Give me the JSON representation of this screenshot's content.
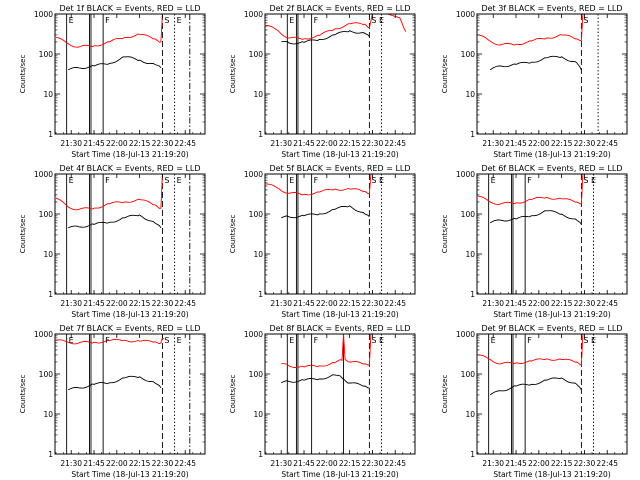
{
  "figure": {
    "ylabel": "Counts/sec",
    "xlabel": "Start Time (18-Jul-13 21:19:20)",
    "x_ticks": [
      "21:30",
      "21:45",
      "22:00",
      "22:15",
      "22:30",
      "22:45"
    ],
    "y_ticks": [
      "1",
      "10",
      "100",
      "1000"
    ],
    "colors": {
      "events": "#000000",
      "lld": "#ff0000",
      "axis": "#000000"
    }
  },
  "chart_data": [
    {
      "type": "line",
      "title": "Det 1f BLACK = Events, RED = LLD",
      "xlabel": "Start Time (18-Jul-13 21:19:20)",
      "ylabel": "Counts/sec",
      "ylim": [
        1,
        1000
      ],
      "yscale": "log",
      "xlim": [
        "21:19:20",
        "22:58"
      ],
      "x_ticks": [
        "21:30",
        "21:45",
        "22:00",
        "22:15",
        "22:30",
        "22:45"
      ],
      "markers": {
        "solid": [
          "21:27",
          "21:42",
          "21:43",
          "21:51"
        ],
        "dashed": [
          "22:30"
        ],
        "dotted": [
          "22:38"
        ],
        "dashdot": [
          "22:48"
        ],
        "labels": [
          {
            "x": "21:27",
            "text": "E"
          },
          {
            "x": "21:51",
            "text": "F"
          },
          {
            "x": "22:30",
            "text": "S"
          },
          {
            "x": "22:38",
            "text": "E"
          }
        ]
      },
      "series": [
        {
          "name": "Events",
          "x": [
            "21:28",
            "21:35",
            "21:45",
            "21:55",
            "22:05",
            "22:15",
            "22:25",
            "22:29"
          ],
          "values": [
            40,
            45,
            50,
            58,
            85,
            70,
            55,
            45
          ]
        },
        {
          "name": "LLD",
          "x": [
            "21:20",
            "21:28",
            "21:35",
            "21:45",
            "21:55",
            "22:05",
            "22:15",
            "22:25",
            "22:29",
            "22:30",
            "22:31"
          ],
          "values": [
            260,
            180,
            150,
            160,
            200,
            260,
            310,
            240,
            200,
            1000,
            1000
          ]
        }
      ]
    },
    {
      "type": "line",
      "title": "Det 2f BLACK = Events, RED = LLD",
      "xlabel": "Start Time (18-Jul-13 21:19:20)",
      "ylabel": "Counts/sec",
      "ylim": [
        1,
        1000
      ],
      "yscale": "log",
      "xlim": [
        "21:19:20",
        "22:58"
      ],
      "x_ticks": [
        "21:30",
        "21:45",
        "22:00",
        "22:15",
        "22:30",
        "22:45"
      ],
      "markers": {
        "solid": [
          "21:34",
          "21:40",
          "21:41",
          "21:50"
        ],
        "dashed": [
          "22:28"
        ],
        "dotted": [
          "22:36"
        ],
        "dashdot": [],
        "labels": [
          {
            "x": "21:34",
            "text": "E"
          },
          {
            "x": "21:50",
            "text": "F"
          },
          {
            "x": "22:28",
            "text": "S"
          },
          {
            "x": "22:33",
            "text": "E"
          }
        ]
      },
      "series": [
        {
          "name": "Events",
          "x": [
            "21:30",
            "21:35",
            "21:45",
            "21:55",
            "22:05",
            "22:15",
            "22:25",
            "22:28"
          ],
          "values": [
            200,
            190,
            195,
            230,
            300,
            380,
            330,
            270
          ]
        },
        {
          "name": "LLD",
          "x": [
            "21:20",
            "21:28",
            "21:35",
            "21:45",
            "21:55",
            "22:05",
            "22:15",
            "22:25",
            "22:28",
            "22:30",
            "22:40",
            "22:48",
            "22:52"
          ],
          "values": [
            520,
            380,
            250,
            240,
            290,
            420,
            570,
            560,
            450,
            1000,
            1000,
            800,
            360
          ]
        }
      ]
    },
    {
      "type": "line",
      "title": "Det 3f BLACK = Events, RED = LLD",
      "xlabel": "Start Time (18-Jul-13 21:19:20)",
      "ylabel": "Counts/sec",
      "ylim": [
        1,
        1000
      ],
      "yscale": "log",
      "xlim": [
        "21:19:20",
        "22:58"
      ],
      "x_ticks": [
        "21:30",
        "21:45",
        "22:00",
        "22:15",
        "22:30",
        "22:45"
      ],
      "markers": {
        "solid": [],
        "dashed": [
          "22:28"
        ],
        "dotted": [
          "22:39"
        ],
        "dashdot": [],
        "labels": [
          {
            "x": "22:28",
            "text": "S"
          }
        ]
      },
      "series": [
        {
          "name": "Events",
          "x": [
            "21:28",
            "21:35",
            "21:45",
            "21:55",
            "22:05",
            "22:15",
            "22:25",
            "22:28"
          ],
          "values": [
            40,
            50,
            55,
            62,
            80,
            85,
            60,
            40
          ]
        },
        {
          "name": "LLD",
          "x": [
            "21:20",
            "21:28",
            "21:35",
            "21:45",
            "21:55",
            "22:05",
            "22:15",
            "22:25",
            "22:28",
            "22:29",
            "22:30"
          ],
          "values": [
            300,
            210,
            170,
            175,
            210,
            250,
            300,
            240,
            220,
            1000,
            1000
          ]
        }
      ]
    },
    {
      "type": "line",
      "title": "Det 4f BLACK = Events, RED = LLD",
      "xlabel": "Start Time (18-Jul-13 21:19:20)",
      "ylabel": "Counts/sec",
      "ylim": [
        1,
        1000
      ],
      "yscale": "log",
      "xlim": [
        "21:19:20",
        "22:58"
      ],
      "x_ticks": [
        "21:30",
        "21:45",
        "22:00",
        "22:15",
        "22:30",
        "22:45"
      ],
      "markers": {
        "solid": [
          "21:27",
          "21:42",
          "21:43",
          "21:51"
        ],
        "dashed": [
          "22:30"
        ],
        "dotted": [
          "22:38"
        ],
        "dashdot": [
          "22:48"
        ],
        "labels": [
          {
            "x": "21:27",
            "text": "E"
          },
          {
            "x": "21:51",
            "text": "F"
          },
          {
            "x": "22:30",
            "text": "S"
          },
          {
            "x": "22:38",
            "text": "E"
          }
        ]
      },
      "series": [
        {
          "name": "Events",
          "x": [
            "21:28",
            "21:35",
            "21:45",
            "21:55",
            "22:05",
            "22:15",
            "22:25",
            "22:29"
          ],
          "values": [
            45,
            48,
            55,
            62,
            80,
            95,
            60,
            45
          ]
        },
        {
          "name": "LLD",
          "x": [
            "21:20",
            "21:28",
            "21:35",
            "21:45",
            "21:55",
            "22:05",
            "22:15",
            "22:25",
            "22:29",
            "22:30",
            "22:31"
          ],
          "values": [
            250,
            150,
            130,
            140,
            180,
            200,
            230,
            170,
            140,
            1000,
            1000
          ]
        }
      ]
    },
    {
      "type": "line",
      "title": "Det 5f BLACK = Events, RED = LLD",
      "xlabel": "Start Time (18-Jul-13 21:19:20)",
      "ylabel": "Counts/sec",
      "ylim": [
        1,
        1000
      ],
      "yscale": "log",
      "xlim": [
        "21:19:20",
        "22:58"
      ],
      "x_ticks": [
        "21:30",
        "21:45",
        "22:00",
        "22:15",
        "22:30",
        "22:45"
      ],
      "markers": {
        "solid": [
          "21:34",
          "21:40",
          "21:41",
          "21:50"
        ],
        "dashed": [
          "22:28"
        ],
        "dotted": [
          "22:36"
        ],
        "dashdot": [],
        "labels": [
          {
            "x": "21:34",
            "text": "E"
          },
          {
            "x": "21:50",
            "text": "F"
          },
          {
            "x": "22:28",
            "text": "S"
          },
          {
            "x": "22:33",
            "text": "E"
          }
        ]
      },
      "series": [
        {
          "name": "Events",
          "x": [
            "21:30",
            "21:35",
            "21:45",
            "21:55",
            "22:05",
            "22:15",
            "22:25",
            "22:28"
          ],
          "values": [
            80,
            85,
            90,
            100,
            130,
            160,
            100,
            85
          ]
        },
        {
          "name": "LLD",
          "x": [
            "21:20",
            "21:28",
            "21:35",
            "21:45",
            "21:55",
            "22:05",
            "22:15",
            "22:25",
            "22:28",
            "22:29",
            "22:30"
          ],
          "values": [
            560,
            440,
            330,
            310,
            350,
            420,
            420,
            370,
            320,
            1000,
            1000
          ]
        }
      ]
    },
    {
      "type": "line",
      "title": "Det 6f BLACK = Events, RED = LLD",
      "xlabel": "Start Time (18-Jul-13 21:19:20)",
      "ylabel": "Counts/sec",
      "ylim": [
        1,
        1000
      ],
      "yscale": "log",
      "xlim": [
        "21:19:20",
        "22:58"
      ],
      "x_ticks": [
        "21:30",
        "21:45",
        "22:00",
        "22:15",
        "22:30",
        "22:45"
      ],
      "markers": {
        "solid": [
          "21:27",
          "21:42",
          "21:43",
          "21:51"
        ],
        "dashed": [
          "22:28"
        ],
        "dotted": [
          "22:36"
        ],
        "dashdot": [],
        "labels": [
          {
            "x": "21:27",
            "text": "E"
          },
          {
            "x": "21:51",
            "text": "F"
          },
          {
            "x": "22:28",
            "text": "S"
          },
          {
            "x": "22:33",
            "text": "E"
          }
        ]
      },
      "series": [
        {
          "name": "Events",
          "x": [
            "21:28",
            "21:35",
            "21:45",
            "21:55",
            "22:05",
            "22:15",
            "22:25",
            "22:28"
          ],
          "values": [
            60,
            70,
            75,
            90,
            120,
            100,
            70,
            55
          ]
        },
        {
          "name": "LLD",
          "x": [
            "21:20",
            "21:28",
            "21:35",
            "21:45",
            "21:55",
            "22:05",
            "22:15",
            "22:25",
            "22:28",
            "22:29",
            "22:30"
          ],
          "values": [
            280,
            200,
            180,
            190,
            230,
            260,
            240,
            200,
            180,
            1000,
            1000
          ]
        }
      ]
    },
    {
      "type": "line",
      "title": "Det 7f BLACK = Events, RED = LLD",
      "xlabel": "Start Time (18-Jul-13 21:19:20)",
      "ylabel": "Counts/sec",
      "ylim": [
        1,
        1000
      ],
      "yscale": "log",
      "xlim": [
        "21:19:20",
        "22:58"
      ],
      "x_ticks": [
        "21:30",
        "21:45",
        "22:00",
        "22:15",
        "22:30",
        "22:45"
      ],
      "markers": {
        "solid": [
          "21:27",
          "21:42",
          "21:43",
          "21:51"
        ],
        "dashed": [
          "22:30"
        ],
        "dotted": [
          "22:38"
        ],
        "dashdot": [
          "22:48"
        ],
        "labels": [
          {
            "x": "21:27",
            "text": "E"
          },
          {
            "x": "21:51",
            "text": "F"
          },
          {
            "x": "22:30",
            "text": "S"
          },
          {
            "x": "22:38",
            "text": "E"
          }
        ]
      },
      "series": [
        {
          "name": "Events",
          "x": [
            "21:28",
            "21:35",
            "21:45",
            "21:55",
            "22:05",
            "22:15",
            "22:25",
            "22:29"
          ],
          "values": [
            40,
            45,
            55,
            60,
            80,
            85,
            60,
            45
          ]
        },
        {
          "name": "LLD",
          "x": [
            "21:20",
            "21:28",
            "21:35",
            "21:45",
            "21:55",
            "22:05",
            "22:15",
            "22:25",
            "22:29",
            "22:30",
            "22:31"
          ],
          "values": [
            700,
            620,
            600,
            620,
            680,
            700,
            660,
            640,
            600,
            800,
            750
          ]
        }
      ]
    },
    {
      "type": "line",
      "title": "Det 8f BLACK = Events, RED = LLD",
      "xlabel": "Start Time (18-Jul-13 21:19:20)",
      "ylabel": "Counts/sec",
      "ylim": [
        1,
        1000
      ],
      "yscale": "log",
      "xlim": [
        "21:19:20",
        "22:58"
      ],
      "x_ticks": [
        "21:30",
        "21:45",
        "22:00",
        "22:15",
        "22:30",
        "22:45"
      ],
      "markers": {
        "solid": [
          "21:34",
          "21:40",
          "21:41",
          "21:50",
          "22:11"
        ],
        "dashed": [
          "22:28"
        ],
        "dotted": [
          "22:36"
        ],
        "dashdot": [],
        "labels": [
          {
            "x": "21:34",
            "text": "E"
          },
          {
            "x": "21:50",
            "text": "F"
          },
          {
            "x": "22:28",
            "text": "S"
          },
          {
            "x": "22:33",
            "text": "E"
          }
        ]
      },
      "series": [
        {
          "name": "Events",
          "x": [
            "21:30",
            "21:35",
            "21:45",
            "21:55",
            "22:05",
            "22:10",
            "22:15",
            "22:25",
            "22:28"
          ],
          "values": [
            60,
            65,
            70,
            75,
            95,
            80,
            60,
            50,
            45
          ]
        },
        {
          "name": "LLD",
          "x": [
            "21:30",
            "21:35",
            "21:45",
            "21:55",
            "22:05",
            "22:10",
            "22:11",
            "22:12",
            "22:15",
            "22:25",
            "22:28",
            "22:29",
            "22:30"
          ],
          "values": [
            180,
            160,
            150,
            160,
            190,
            220,
            1000,
            230,
            200,
            180,
            170,
            1000,
            1000
          ]
        }
      ]
    },
    {
      "type": "line",
      "title": "Det 9f BLACK = Events, RED = LLD",
      "xlabel": "Start Time (18-Jul-13 21:19:20)",
      "ylabel": "Counts/sec",
      "ylim": [
        1,
        1000
      ],
      "yscale": "log",
      "xlim": [
        "21:19:20",
        "22:58"
      ],
      "x_ticks": [
        "21:30",
        "21:45",
        "22:00",
        "22:15",
        "22:30",
        "22:45"
      ],
      "markers": {
        "solid": [
          "21:27",
          "21:42",
          "21:43",
          "21:51"
        ],
        "dashed": [
          "22:28"
        ],
        "dotted": [
          "22:36"
        ],
        "dashdot": [],
        "labels": [
          {
            "x": "21:27",
            "text": "E"
          },
          {
            "x": "21:51",
            "text": "F"
          },
          {
            "x": "22:28",
            "text": "S"
          },
          {
            "x": "22:33",
            "text": "E"
          }
        ]
      },
      "series": [
        {
          "name": "Events",
          "x": [
            "21:28",
            "21:35",
            "21:45",
            "21:55",
            "22:05",
            "22:15",
            "22:25",
            "22:28"
          ],
          "values": [
            30,
            38,
            50,
            55,
            70,
            80,
            55,
            40
          ]
        },
        {
          "name": "LLD",
          "x": [
            "21:20",
            "21:28",
            "21:35",
            "21:45",
            "21:55",
            "22:05",
            "22:15",
            "22:25",
            "22:28",
            "22:29",
            "22:30"
          ],
          "values": [
            300,
            230,
            180,
            190,
            210,
            240,
            230,
            200,
            170,
            1000,
            1000
          ]
        }
      ]
    }
  ]
}
